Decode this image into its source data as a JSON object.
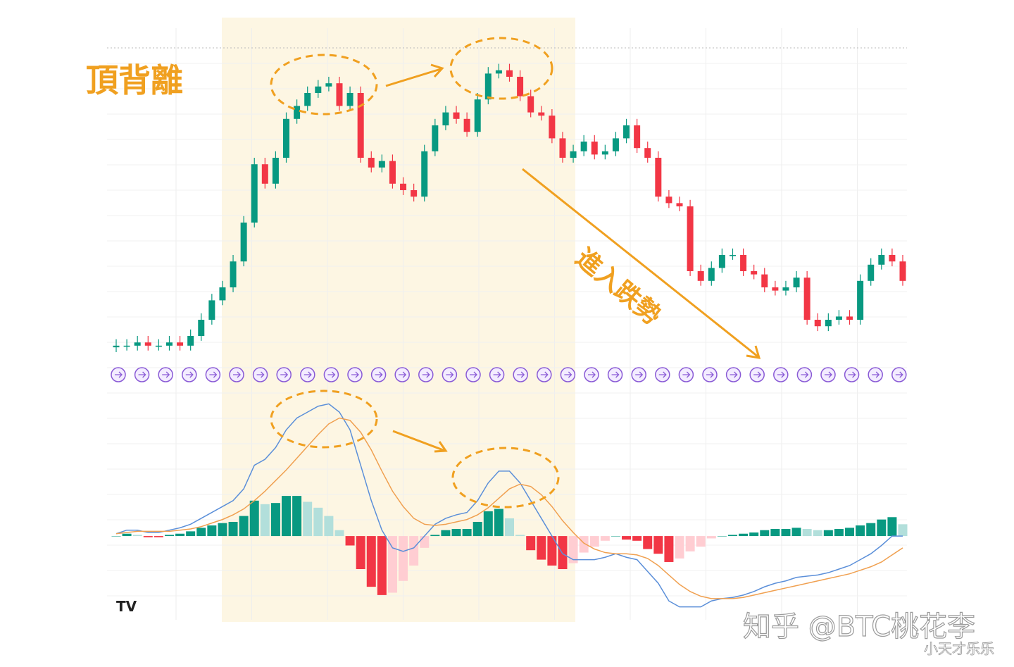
{
  "chart_data": {
    "type": "candlestick",
    "title": "頂背離",
    "annotations": [
      "進入跌勢"
    ],
    "watermark": "知乎 @BTC桃花李",
    "sub_watermark": "小天才乐乐",
    "ylim": [
      0,
      100
    ],
    "up_color": "#089981",
    "down_color": "#f23645",
    "open": [
      1.5,
      2,
      2,
      3,
      2,
      2,
      3,
      2,
      5,
      10,
      16,
      20,
      28,
      40,
      58,
      52,
      60,
      72,
      76,
      80,
      82,
      83,
      76,
      80,
      60,
      57,
      59,
      52,
      50,
      48,
      62,
      70,
      74,
      72,
      68,
      78,
      86,
      87,
      85,
      79,
      74,
      73,
      66,
      60,
      62,
      65,
      61,
      62,
      66,
      70,
      63,
      60,
      48,
      46,
      45,
      25,
      22,
      26,
      30,
      30,
      25,
      24,
      20,
      19,
      20,
      23,
      10,
      8,
      10,
      11,
      10,
      22,
      27,
      30,
      28
    ],
    "high": [
      4,
      4,
      5,
      5,
      4,
      5,
      5,
      7,
      12,
      18,
      22,
      30,
      42,
      60,
      60,
      62,
      74,
      78,
      82,
      84,
      85,
      85,
      82,
      82,
      62,
      61,
      61,
      54,
      52,
      64,
      72,
      76,
      76,
      74,
      80,
      88,
      89,
      89,
      87,
      81,
      76,
      75,
      68,
      64,
      67,
      67,
      64,
      68,
      72,
      72,
      65,
      62,
      50,
      48,
      47,
      27,
      28,
      32,
      32,
      32,
      27,
      26,
      22,
      22,
      25,
      25,
      12,
      12,
      13,
      13,
      24,
      29,
      32,
      32,
      30
    ],
    "low": [
      0,
      0.5,
      0.5,
      0.5,
      0.5,
      0.5,
      0.5,
      0.5,
      3.5,
      8.5,
      14.5,
      18.5,
      26.5,
      38.5,
      50.5,
      50.5,
      58.5,
      70.5,
      74.5,
      78.5,
      80.5,
      74.5,
      74.5,
      58.5,
      55.5,
      55.5,
      50.5,
      48.5,
      46.5,
      46.5,
      60.5,
      68.5,
      70.5,
      66.5,
      66.5,
      76.5,
      84.5,
      83.5,
      77.5,
      72.5,
      71.5,
      64.5,
      58.5,
      58.5,
      60.5,
      59.5,
      59.5,
      60.5,
      64.5,
      61.5,
      58.5,
      46.5,
      44.5,
      43.5,
      23.5,
      20.5,
      20.5,
      24.5,
      28.5,
      23.5,
      22.5,
      18.5,
      17.5,
      17.5,
      18.5,
      8.5,
      6.5,
      6.5,
      8.5,
      8.5,
      8.5,
      20.5,
      25.5,
      26.5,
      20.5
    ],
    "close": [
      2,
      2,
      3,
      2,
      2,
      3,
      2,
      5,
      10,
      16,
      20,
      28,
      40,
      58,
      52,
      60,
      72,
      76,
      80,
      82,
      83,
      76,
      80,
      60,
      57,
      59,
      52,
      50,
      48,
      62,
      70,
      74,
      72,
      68,
      78,
      86,
      87,
      85,
      79,
      74,
      73,
      66,
      60,
      62,
      65,
      61,
      62,
      66,
      70,
      63,
      60,
      48,
      46,
      45,
      25,
      22,
      26,
      30,
      30,
      25,
      24,
      20,
      19,
      20,
      23,
      10,
      8,
      10,
      11,
      10,
      22,
      27,
      30,
      28,
      22
    ],
    "macd": {
      "ylim": [
        -6.5,
        12
      ],
      "macd_color": "#5b8fd9",
      "signal_color": "#f0a050",
      "hist_colors": [
        "#089981",
        "#b2dfdb",
        "#f23645",
        "#ffcdd2"
      ],
      "macd": [
        0.2,
        0.5,
        0.5,
        0.3,
        0.3,
        0.5,
        0.7,
        1,
        1.5,
        2,
        2.5,
        3,
        4,
        6,
        6.5,
        7.5,
        9,
        10,
        10.5,
        11,
        11.2,
        10.5,
        9,
        6,
        3,
        0.5,
        -1,
        -1.3,
        -1,
        0,
        1,
        1.5,
        1.8,
        2,
        3,
        4.5,
        5.5,
        5.5,
        4.5,
        3,
        1.5,
        0,
        -1.5,
        -2,
        -2,
        -2,
        -1.8,
        -1.5,
        -1.8,
        -2,
        -3,
        -4,
        -5.5,
        -6,
        -6,
        -6,
        -5.5,
        -5.3,
        -5.2,
        -5,
        -4.7,
        -4.3,
        -4,
        -3.8,
        -3.5,
        -3.4,
        -3.3,
        -3.1,
        -2.8,
        -2.5,
        -2,
        -1.5,
        -0.8,
        0,
        0
      ],
      "signal": [
        0.2,
        0.3,
        0.4,
        0.4,
        0.4,
        0.4,
        0.5,
        0.6,
        0.8,
        1.1,
        1.4,
        1.8,
        2.3,
        3,
        3.8,
        4.7,
        5.6,
        6.6,
        7.6,
        8.6,
        9.5,
        10,
        9.8,
        8.8,
        7.3,
        5.5,
        3.8,
        2.5,
        1.5,
        1,
        0.9,
        1,
        1.2,
        1.4,
        1.8,
        2.4,
        3.2,
        4,
        4.4,
        4.2,
        3.5,
        2.5,
        1.3,
        0.3,
        -0.6,
        -1.1,
        -1.4,
        -1.5,
        -1.5,
        -1.6,
        -1.9,
        -2.5,
        -3.3,
        -4.1,
        -4.7,
        -5.1,
        -5.3,
        -5.3,
        -5.3,
        -5.2,
        -5,
        -4.8,
        -4.6,
        -4.4,
        -4.2,
        -4,
        -3.8,
        -3.6,
        -3.4,
        -3.2,
        -2.9,
        -2.6,
        -2.2,
        -1.6,
        -1.0
      ],
      "hist": [
        0,
        0.2,
        0.1,
        -0.1,
        -0.1,
        0.1,
        0.2,
        0.4,
        0.7,
        0.9,
        1.1,
        1.2,
        1.7,
        3,
        2.7,
        2.8,
        3.4,
        3.4,
        2.9,
        2.4,
        1.7,
        0.5,
        -0.8,
        -2.8,
        -4.3,
        -5,
        -4.8,
        -3.8,
        -2.5,
        -1,
        0.1,
        0.5,
        0.6,
        0.6,
        1.2,
        2.1,
        2.3,
        1.5,
        0.1,
        -1.2,
        -2,
        -2.5,
        -2.8,
        -2.3,
        -1.4,
        -0.9,
        -0.4,
        0,
        -0.3,
        -0.4,
        -1.1,
        -1.5,
        -2.2,
        -1.9,
        -1.3,
        -0.9,
        -0.2,
        0,
        0.1,
        0.2,
        0.3,
        0.5,
        0.6,
        0.6,
        0.7,
        0.6,
        0.5,
        0.5,
        0.6,
        0.7,
        0.9,
        1.1,
        1.4,
        1.6,
        1.0
      ]
    }
  }
}
